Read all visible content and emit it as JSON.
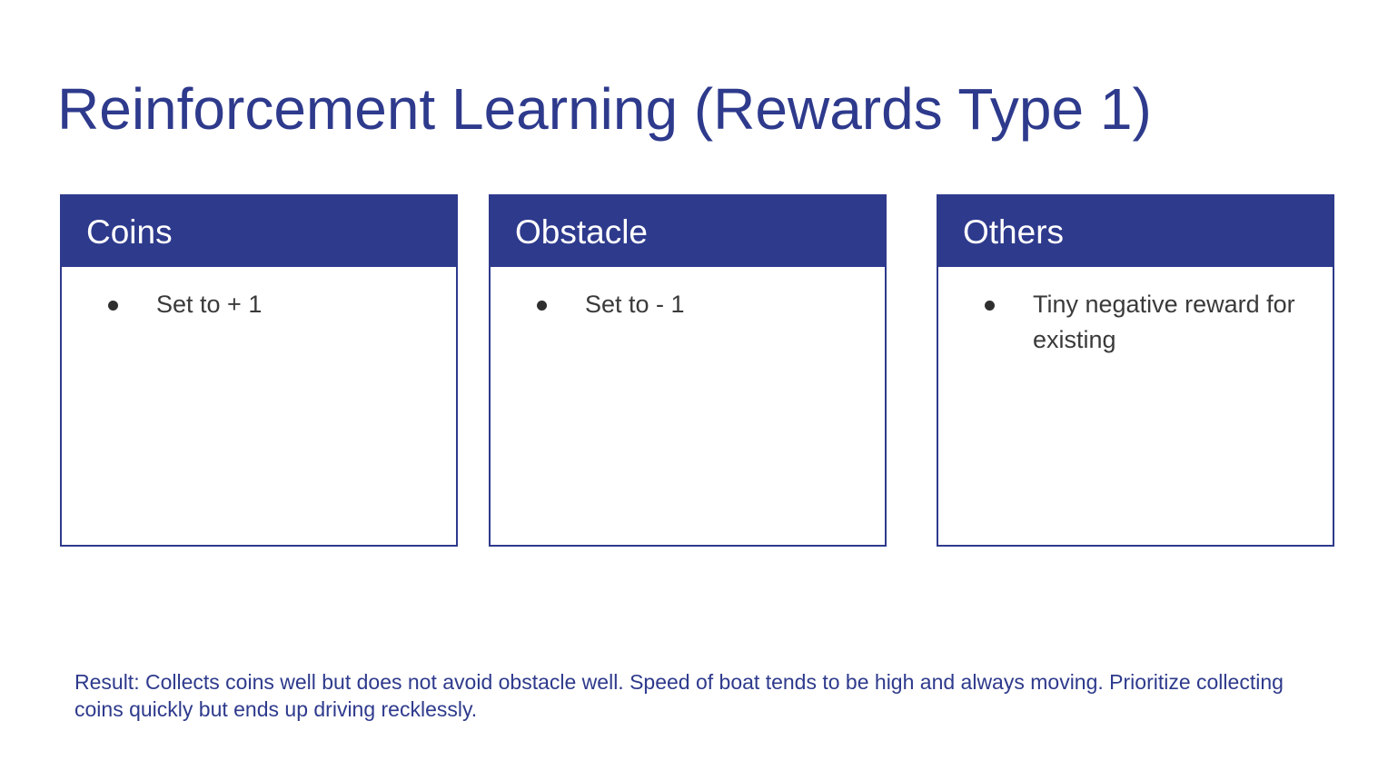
{
  "slide": {
    "title": "Reinforcement Learning (Rewards Type 1)",
    "cards": [
      {
        "header": "Coins",
        "items": [
          "Set to + 1"
        ]
      },
      {
        "header": "Obstacle",
        "items": [
          "Set to - 1"
        ]
      },
      {
        "header": "Others",
        "items": [
          "Tiny negative reward for existing"
        ]
      }
    ],
    "result": "Result: Collects coins well but does not avoid obstacle well. Speed of boat tends to be high and always moving. Prioritize collecting coins quickly but ends up driving recklessly."
  },
  "colors": {
    "accent": "#2e3a8c",
    "body_text": "#3a3a3a",
    "background": "#ffffff"
  }
}
